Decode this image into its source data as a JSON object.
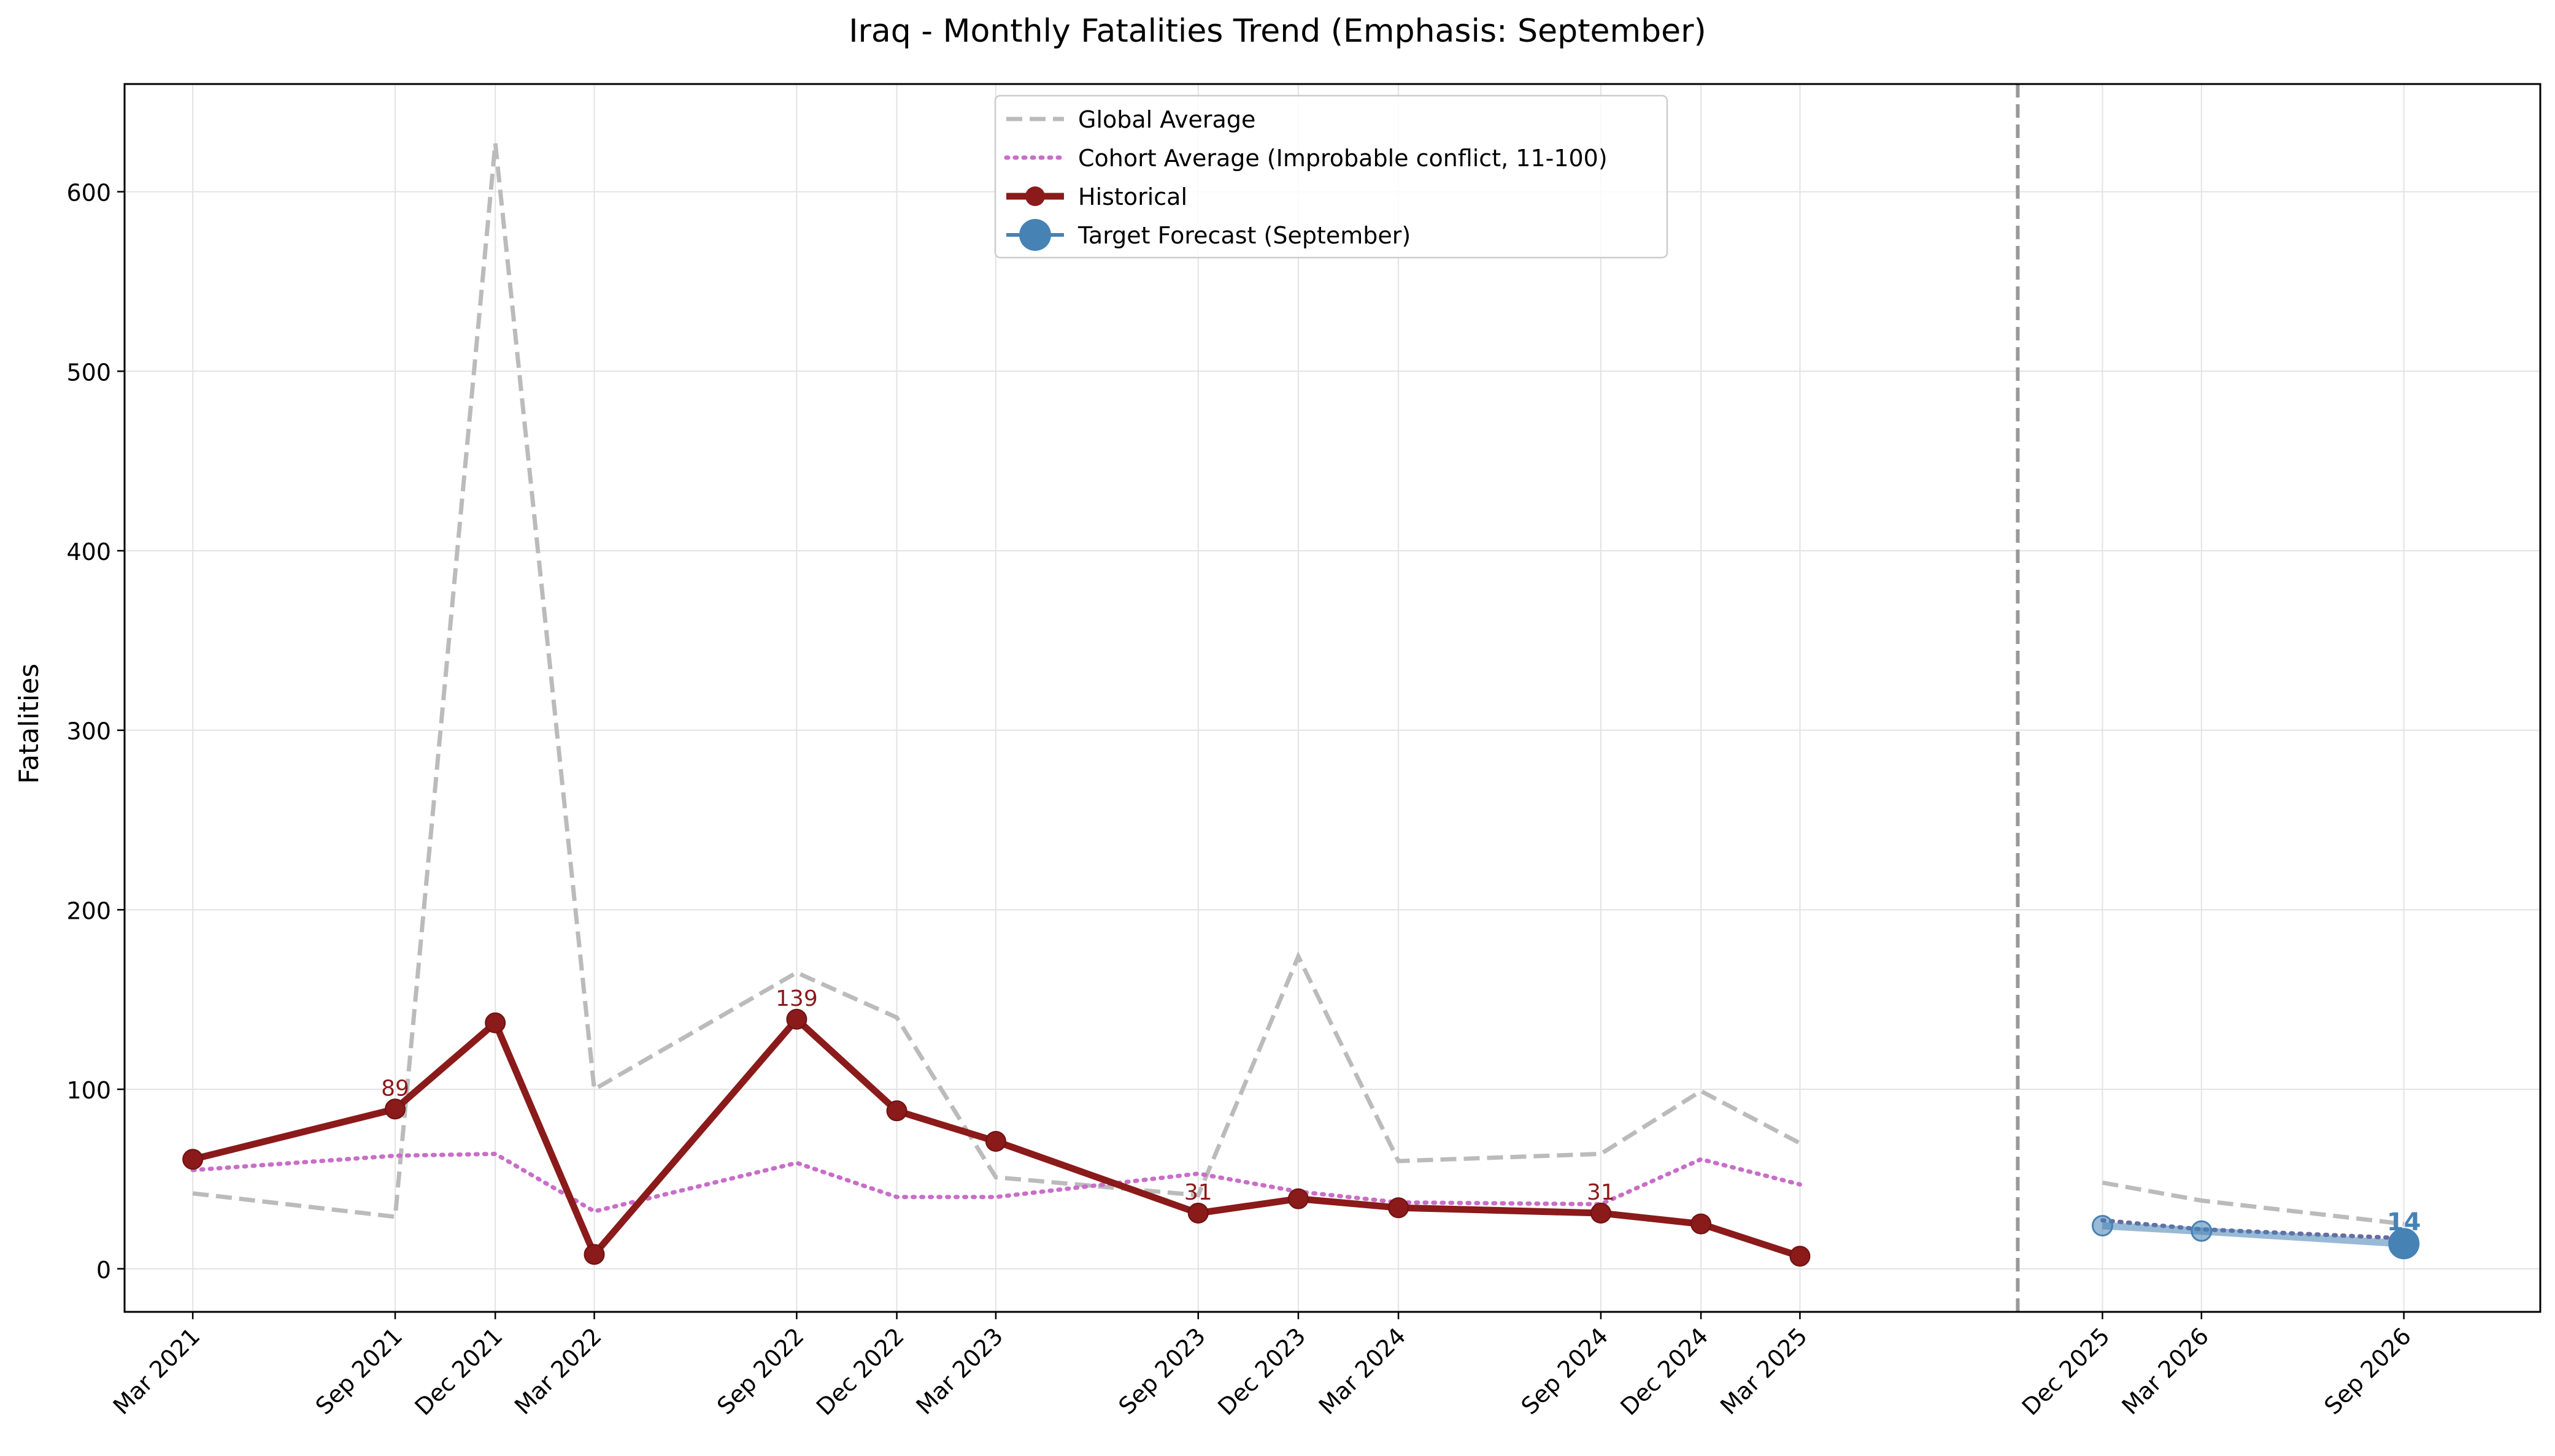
{
  "chart_data": {
    "type": "line",
    "title": "Iraq - Monthly Fatalities Trend (Emphasis: September)",
    "xlabel": "",
    "ylabel": "Fatalities",
    "ylim": [
      -24,
      660
    ],
    "yticks": [
      0,
      100,
      200,
      300,
      400,
      500,
      600
    ],
    "xlim": [
      "2020-12-29",
      "2027-01-03"
    ],
    "grid": true,
    "legend_position": "top-center",
    "forecast_divider_date": "2025-09-15",
    "xticks": [
      {
        "date": "2021-03-01",
        "label": "Mar 2021"
      },
      {
        "date": "2021-09-01",
        "label": "Sep 2021"
      },
      {
        "date": "2021-12-01",
        "label": "Dec 2021"
      },
      {
        "date": "2022-03-01",
        "label": "Mar 2022"
      },
      {
        "date": "2022-09-01",
        "label": "Sep 2022"
      },
      {
        "date": "2022-12-01",
        "label": "Dec 2022"
      },
      {
        "date": "2023-03-01",
        "label": "Mar 2023"
      },
      {
        "date": "2023-09-01",
        "label": "Sep 2023"
      },
      {
        "date": "2023-12-01",
        "label": "Dec 2023"
      },
      {
        "date": "2024-03-01",
        "label": "Mar 2024"
      },
      {
        "date": "2024-09-01",
        "label": "Sep 2024"
      },
      {
        "date": "2024-12-01",
        "label": "Dec 2024"
      },
      {
        "date": "2025-03-01",
        "label": "Mar 2025"
      },
      {
        "date": "2025-12-01",
        "label": "Dec 2025"
      },
      {
        "date": "2026-03-01",
        "label": "Mar 2026"
      },
      {
        "date": "2026-09-01",
        "label": "Sep 2026"
      }
    ],
    "series": [
      {
        "name": "Global Average",
        "color": "#bbbbbb",
        "style": "dashed",
        "points": [
          [
            "2021-03-01",
            42
          ],
          [
            "2021-09-01",
            29
          ],
          [
            "2021-12-01",
            627
          ],
          [
            "2022-03-01",
            100
          ],
          [
            "2022-09-01",
            165
          ],
          [
            "2022-12-01",
            140
          ],
          [
            "2023-03-01",
            51
          ],
          [
            "2023-09-01",
            41
          ],
          [
            "2023-12-01",
            174
          ],
          [
            "2024-03-01",
            60
          ],
          [
            "2024-09-01",
            64
          ],
          [
            "2024-12-01",
            99
          ],
          [
            "2025-03-01",
            70
          ]
        ],
        "forecast_points": [
          [
            "2025-12-01",
            48
          ],
          [
            "2026-03-01",
            38
          ],
          [
            "2026-09-01",
            25
          ]
        ]
      },
      {
        "name": "Cohort Average (Improbable conflict, 11-100)",
        "color": "#c86ec8",
        "style": "dotted",
        "points": [
          [
            "2021-03-01",
            55
          ],
          [
            "2021-09-01",
            63
          ],
          [
            "2021-12-01",
            64
          ],
          [
            "2022-03-01",
            32
          ],
          [
            "2022-09-01",
            59
          ],
          [
            "2022-12-01",
            40
          ],
          [
            "2023-03-01",
            40
          ],
          [
            "2023-09-01",
            53
          ],
          [
            "2023-12-01",
            43
          ],
          [
            "2024-03-01",
            37
          ],
          [
            "2024-09-01",
            36
          ],
          [
            "2024-12-01",
            61
          ],
          [
            "2025-03-01",
            47
          ]
        ],
        "forecast_points": [
          [
            "2025-12-01",
            27
          ],
          [
            "2026-03-01",
            22
          ],
          [
            "2026-09-01",
            17
          ]
        ]
      },
      {
        "name": "Historical",
        "color": "#8b1a1a",
        "style": "solid-marker",
        "points": [
          [
            "2021-03-01",
            61
          ],
          [
            "2021-09-01",
            89
          ],
          [
            "2021-12-01",
            137
          ],
          [
            "2022-03-01",
            8
          ],
          [
            "2022-09-01",
            139
          ],
          [
            "2022-12-01",
            88
          ],
          [
            "2023-03-01",
            71
          ],
          [
            "2023-09-01",
            31
          ],
          [
            "2023-12-01",
            39
          ],
          [
            "2024-03-01",
            34
          ],
          [
            "2024-09-01",
            31
          ],
          [
            "2024-12-01",
            25
          ],
          [
            "2025-03-01",
            7
          ]
        ],
        "data_labels": [
          {
            "date": "2021-09-01",
            "value": 89,
            "text": "89"
          },
          {
            "date": "2022-09-01",
            "value": 139,
            "text": "139"
          },
          {
            "date": "2023-09-01",
            "value": 31,
            "text": "31"
          },
          {
            "date": "2024-09-01",
            "value": 31,
            "text": "31"
          }
        ]
      },
      {
        "name": "Target Forecast (September)",
        "color": "#4682b4",
        "style": "forecast",
        "points": [
          [
            "2025-12-01",
            24
          ],
          [
            "2026-03-01",
            21
          ],
          [
            "2026-09-01",
            14
          ]
        ],
        "data_labels": [
          {
            "date": "2026-09-01",
            "value": 14,
            "text": "14"
          }
        ]
      }
    ]
  }
}
